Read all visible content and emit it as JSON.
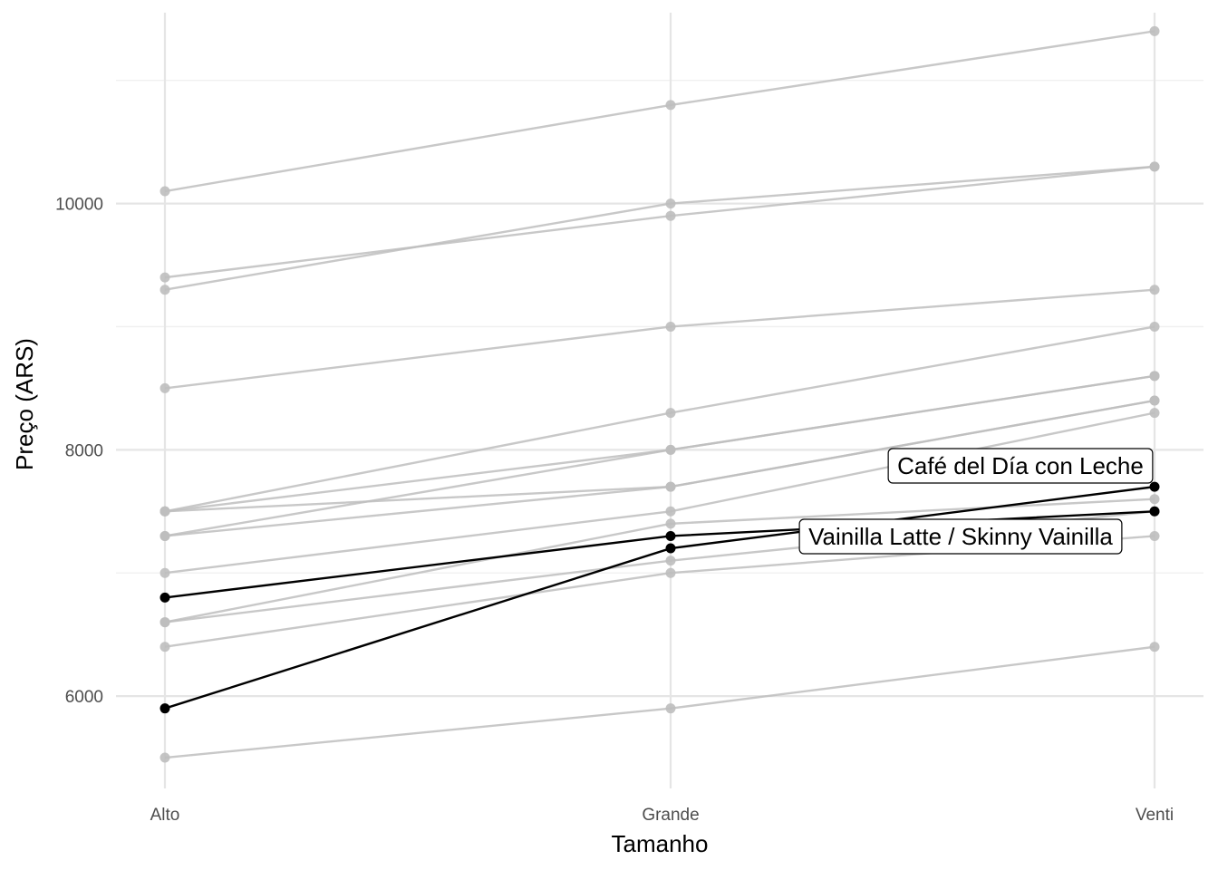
{
  "chart_data": {
    "type": "line",
    "title": "",
    "xlabel": "Tamanho",
    "ylabel": "Preço (ARS)",
    "categories": [
      "Alto",
      "Grande",
      "Venti"
    ],
    "ylim": [
      5250,
      11550
    ],
    "y_major_ticks": [
      6000,
      8000,
      10000
    ],
    "y_tick_labels": [
      "6000",
      "8000",
      "10000"
    ],
    "y_minor_ticks": [
      7000,
      9000,
      11000
    ],
    "grid": true,
    "legend": "none",
    "colors": {
      "highlight": "#000000",
      "muted": "#bebebe",
      "grid": "#e5e5e5"
    },
    "series": [
      {
        "values": [
          10100,
          10800,
          11400
        ],
        "highlight": false
      },
      {
        "values": [
          9400,
          9900,
          10300
        ],
        "highlight": false
      },
      {
        "values": [
          9300,
          10000,
          10300
        ],
        "highlight": false
      },
      {
        "values": [
          8500,
          9000,
          9300
        ],
        "highlight": false
      },
      {
        "values": [
          7500,
          8300,
          9000
        ],
        "highlight": false
      },
      {
        "values": [
          7500,
          8000,
          8600
        ],
        "highlight": false
      },
      {
        "values": [
          7300,
          7700,
          8400
        ],
        "highlight": false
      },
      {
        "values": [
          7500,
          7700,
          8400
        ],
        "highlight": false
      },
      {
        "values": [
          7300,
          8000,
          8600
        ],
        "highlight": false
      },
      {
        "values": [
          7000,
          7500,
          8300
        ],
        "highlight": false
      },
      {
        "values": [
          6600,
          7400,
          7600
        ],
        "highlight": false
      },
      {
        "values": [
          6600,
          7100,
          7500
        ],
        "highlight": false
      },
      {
        "values": [
          6400,
          7000,
          7300
        ],
        "highlight": false
      },
      {
        "values": [
          5500,
          5900,
          6400
        ],
        "highlight": false
      },
      {
        "values": [
          6800,
          7300,
          7500
        ],
        "highlight": true
      },
      {
        "values": [
          5900,
          7200,
          7700
        ],
        "highlight": true
      }
    ],
    "annotations": [
      {
        "text": "Café del Día con Leche",
        "series_index": 15
      },
      {
        "text": "Vainilla Latte / Skinny Vainilla",
        "series_index": 14
      }
    ]
  }
}
